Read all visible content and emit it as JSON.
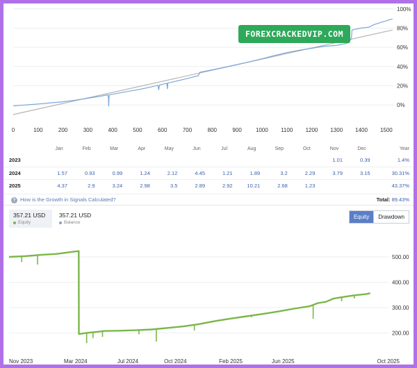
{
  "watermark": "FOREXCRACKEDVIP.COM",
  "growth_chart": {
    "type": "line",
    "x_ticks": [
      "0",
      "100",
      "200",
      "300",
      "400",
      "500",
      "600",
      "700",
      "800",
      "900",
      "1000",
      "1100",
      "1200",
      "1300",
      "1400",
      "1500"
    ],
    "y_ticks": [
      "0%",
      "20%",
      "40%",
      "60%",
      "80%",
      "100%"
    ],
    "xlim": [
      0,
      1520
    ],
    "ylim": [
      -10,
      102
    ],
    "colors": {
      "growth": "#7aa6d8",
      "trend": "#b4b4b4"
    },
    "growth": [
      [
        0,
        -1
      ],
      [
        30,
        -0.4
      ],
      [
        60,
        0.2
      ],
      [
        100,
        1
      ],
      [
        150,
        2.2
      ],
      [
        200,
        3.3
      ],
      [
        250,
        5
      ],
      [
        300,
        7
      ],
      [
        350,
        9
      ],
      [
        380,
        10.6
      ],
      [
        383,
        7.5
      ],
      [
        384,
        -1.5
      ],
      [
        386,
        10.6
      ],
      [
        400,
        11.2
      ],
      [
        450,
        13.6
      ],
      [
        500,
        15.8
      ],
      [
        550,
        18.5
      ],
      [
        582,
        20.5
      ],
      [
        585,
        15.5
      ],
      [
        588,
        20.8
      ],
      [
        600,
        21.5
      ],
      [
        618,
        22.5
      ],
      [
        620,
        16.6
      ],
      [
        622,
        22.8
      ],
      [
        650,
        24.5
      ],
      [
        700,
        27.5
      ],
      [
        745,
        30.5
      ],
      [
        750,
        34
      ],
      [
        800,
        36.5
      ],
      [
        850,
        39.2
      ],
      [
        900,
        42
      ],
      [
        950,
        45
      ],
      [
        1000,
        48
      ],
      [
        1050,
        51.5
      ],
      [
        1100,
        54.5
      ],
      [
        1150,
        57
      ],
      [
        1200,
        59
      ],
      [
        1250,
        61
      ],
      [
        1300,
        62
      ],
      [
        1330,
        63.5
      ],
      [
        1350,
        65
      ],
      [
        1360,
        70
      ],
      [
        1362,
        78
      ],
      [
        1380,
        79
      ],
      [
        1400,
        80
      ],
      [
        1430,
        81
      ],
      [
        1450,
        83.5
      ],
      [
        1480,
        86
      ],
      [
        1500,
        87.5
      ],
      [
        1510,
        88.5
      ],
      [
        1525,
        89.4
      ]
    ],
    "trend": [
      [
        0,
        -10
      ],
      [
        1525,
        78
      ]
    ]
  },
  "table": {
    "months": [
      "Jan",
      "Feb",
      "Mar",
      "Apr",
      "May",
      "Jun",
      "Jul",
      "Aug",
      "Sep",
      "Oct",
      "Nov",
      "Dec"
    ],
    "year_header": "Year",
    "rows": [
      {
        "year": "2023",
        "values": [
          "",
          "",
          "",
          "",
          "",
          "",
          "",
          "",
          "",
          "",
          "1.01",
          "0.39"
        ],
        "total": "1.4%"
      },
      {
        "year": "2024",
        "values": [
          "1.57",
          "0.93",
          "0.99",
          "1.24",
          "2.12",
          "4.45",
          "1.21",
          "1.89",
          "3.2",
          "2.29",
          "3.79",
          "3.15"
        ],
        "total": "30.31%"
      },
      {
        "year": "2025",
        "values": [
          "4.37",
          "2.9",
          "3.24",
          "2.98",
          "3.5",
          "2.89",
          "2.92",
          "10.21",
          "2.68",
          "1.23",
          "",
          ""
        ],
        "total": "43.37%"
      }
    ],
    "note": "How is the Growth in Signals Calculated?",
    "total_label": "Total:",
    "total_value": "89.43%"
  },
  "equity_panel": {
    "equity_value": "357.21 USD",
    "equity_label": "Equity",
    "balance_value": "357.21 USD",
    "balance_label": "Balance",
    "btn_equity": "Equity",
    "btn_drawdown": "Drawdown",
    "colors": {
      "equity": "#7ab648",
      "balance": "#8aa0c8"
    }
  },
  "equity_chart": {
    "type": "line",
    "x_ticks": [
      "Nov 2023",
      "Mar 2024",
      "Jul 2024",
      "Oct 2024",
      "Feb 2025",
      "Jun 2025",
      "Oct 2025"
    ],
    "y_ticks": [
      "200.00",
      "300.00",
      "400.00",
      "500.00"
    ],
    "ylim": [
      125,
      585
    ],
    "xlim": [
      0,
      24
    ],
    "series": [
      [
        0,
        500
      ],
      [
        1,
        503
      ],
      [
        2,
        508
      ],
      [
        3,
        512
      ],
      [
        4,
        520
      ],
      [
        4.4,
        523
      ],
      [
        4.41,
        196
      ],
      [
        5,
        201
      ],
      [
        5.5,
        204
      ],
      [
        6,
        208
      ],
      [
        7,
        209
      ],
      [
        8,
        211
      ],
      [
        9,
        214
      ],
      [
        10,
        220
      ],
      [
        11,
        226
      ],
      [
        12,
        235
      ],
      [
        13,
        247
      ],
      [
        14,
        257
      ],
      [
        15,
        266
      ],
      [
        16,
        275
      ],
      [
        17,
        285
      ],
      [
        18,
        296
      ],
      [
        19,
        306
      ],
      [
        19.5,
        318
      ],
      [
        20,
        323
      ],
      [
        20.5,
        336
      ],
      [
        21,
        341
      ],
      [
        21.5,
        346
      ],
      [
        22,
        350
      ],
      [
        22.5,
        353
      ],
      [
        22.8,
        357
      ]
    ],
    "dips": [
      [
        0.8,
        480
      ],
      [
        1.8,
        470
      ],
      [
        4.9,
        160
      ],
      [
        5.3,
        180
      ],
      [
        5.9,
        185
      ],
      [
        8.2,
        195
      ],
      [
        9.3,
        166
      ],
      [
        11.7,
        210
      ],
      [
        15.3,
        262
      ],
      [
        19.2,
        256
      ],
      [
        21.0,
        325
      ],
      [
        21.8,
        336
      ]
    ]
  }
}
